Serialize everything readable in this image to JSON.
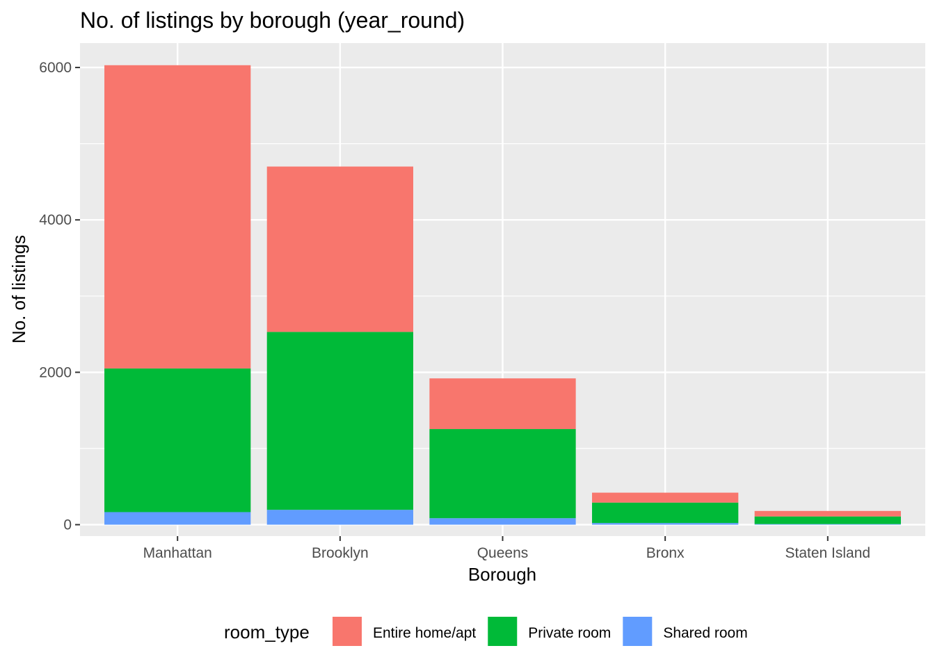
{
  "chart_data": {
    "type": "bar",
    "stacked": true,
    "title": "No. of listings by borough (year_round)",
    "xlabel": "Borough",
    "ylabel": "No. of listings",
    "ylim": [
      -150,
      6320
    ],
    "yticks": [
      0,
      2000,
      4000,
      6000
    ],
    "yticks_minor": [
      1000,
      3000,
      5000
    ],
    "grid": true,
    "categories": [
      "Manhattan",
      "Brooklyn",
      "Queens",
      "Bronx",
      "Staten Island"
    ],
    "series": [
      {
        "name": "Shared room",
        "color": "#619CFF",
        "values": [
          165,
          195,
          85,
          22,
          8
        ]
      },
      {
        "name": "Private room",
        "color": "#00BA38",
        "values": [
          1885,
          2335,
          1170,
          268,
          100
        ]
      },
      {
        "name": "Entire home/apt",
        "color": "#F8766D",
        "values": [
          3980,
          2170,
          665,
          130,
          72
        ]
      }
    ],
    "legend": {
      "title": "room_type",
      "position": "bottom",
      "items": [
        {
          "label": "Entire home/apt",
          "color": "#F8766D"
        },
        {
          "label": "Private room",
          "color": "#00BA38"
        },
        {
          "label": "Shared room",
          "color": "#619CFF"
        }
      ]
    }
  }
}
